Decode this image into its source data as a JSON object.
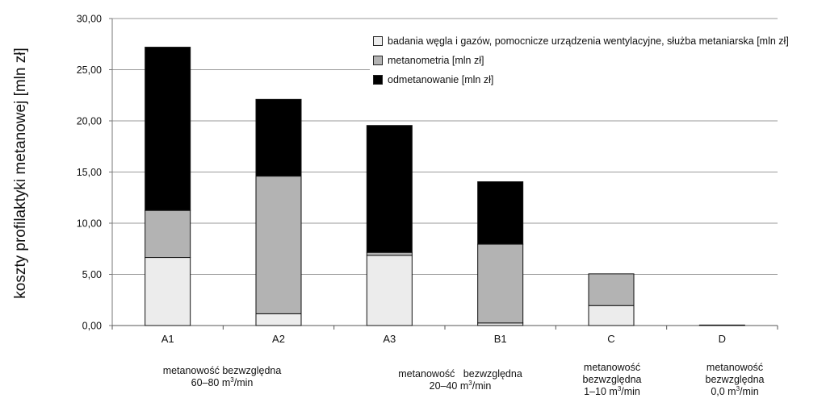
{
  "chart_data": {
    "type": "bar",
    "stacked": true,
    "ylabel": "koszty profilaktyki metanowej [mln zł]",
    "ylim": [
      0,
      30
    ],
    "yticks": [
      "0,00",
      "5,00",
      "10,00",
      "15,00",
      "20,00",
      "25,00",
      "30,00"
    ],
    "categories": [
      "A1",
      "A2",
      "A3",
      "B1",
      "C",
      "D"
    ],
    "grid": true,
    "legend_position": "top-right",
    "series": [
      {
        "name": "badania węgla i gazów, pomocnicze urządzenia wentylacyjne, służba metaniarska [mln zł]",
        "color": "#ececec",
        "values": [
          6.65,
          1.15,
          6.85,
          0.25,
          1.95,
          0.05
        ]
      },
      {
        "name": "metanometria [mln zł]",
        "color": "#b3b3b3",
        "values": [
          4.6,
          13.45,
          0.3,
          7.7,
          3.1,
          0.0
        ]
      },
      {
        "name": "odmetanowanie [mln zł]",
        "color": "#000000",
        "values": [
          15.95,
          7.5,
          12.4,
          6.1,
          0.0,
          0.0
        ]
      }
    ],
    "group_labels": [
      {
        "line1": "metanowość bezwzględna",
        "line2": "60–80 m",
        "sup": "3",
        "line2_suffix": "/min"
      },
      {
        "line1": "metanowość   bezwzględna",
        "line2": "20–40 m",
        "sup": "3",
        "line2_suffix": "/min"
      },
      {
        "line1": "metanowość",
        "line1b": "bezwzględna",
        "line2": "1–10 m",
        "sup": "3",
        "line2_suffix": "/min"
      },
      {
        "line1": "metanowość",
        "line1b": "bezwzględna",
        "line2": "0,0 m",
        "sup": "3",
        "line2_suffix": "/min"
      }
    ]
  }
}
